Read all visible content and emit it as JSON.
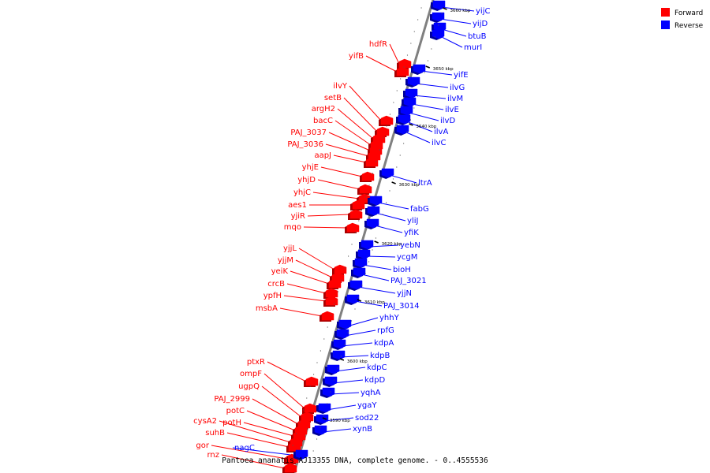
{
  "caption": "Pantoea ananatis AJ13355 DNA, complete genome. - 0..4555536",
  "legend": [
    {
      "label": "Forward",
      "color": "#ff0000"
    },
    {
      "label": "Reverse",
      "color": "#0000ff"
    }
  ],
  "colors": {
    "forward": "#ff0000",
    "reverse": "#0000ff",
    "backbone": "#808080",
    "tick": "#000000"
  },
  "ticks": [
    {
      "label": "3660 kbp",
      "pos": 3660
    },
    {
      "label": "3650 kbp",
      "pos": 3650
    },
    {
      "label": "3640 kbp",
      "pos": 3640
    },
    {
      "label": "3630 kbp",
      "pos": 3630
    },
    {
      "label": "3620 kbp",
      "pos": 3620
    },
    {
      "label": "3610 kbp",
      "pos": 3610
    },
    {
      "label": "3600 kbp",
      "pos": 3600
    },
    {
      "label": "3590 kbp",
      "pos": 3590
    }
  ],
  "forward_genes": [
    "hdfR",
    "yifB",
    "ilvY",
    "setB",
    "argH2",
    "bacC",
    "PAJ_3037",
    "PAJ_3036",
    "aapJ",
    "yhjE",
    "yhjD",
    "yhjC",
    "aes1",
    "yjiR",
    "mqo",
    "yjjL",
    "yjjM",
    "yeiK",
    "crcB",
    "ypfH",
    "msbA",
    "ptxR",
    "ompF",
    "ugpQ",
    "PAJ_2999",
    "potC",
    "potH",
    "cysA2",
    "suhB",
    "gor",
    "rnz"
  ],
  "reverse_genes": [
    "yijC",
    "yijD",
    "btuB",
    "murI",
    "yifE",
    "ilvG",
    "ilvM",
    "ilvE",
    "ilvD",
    "ilvA",
    "ilvC",
    "ltrA",
    "fabG",
    "yliJ",
    "yfiK",
    "yebN",
    "ycgM",
    "bioH",
    "PAJ_3021",
    "yjjN",
    "PAJ_3014",
    "yhhY",
    "rpfG",
    "kdpA",
    "kdpB",
    "kdpC",
    "kdpD",
    "yqhA",
    "ygaY",
    "sod22",
    "xynB",
    "nagC"
  ]
}
